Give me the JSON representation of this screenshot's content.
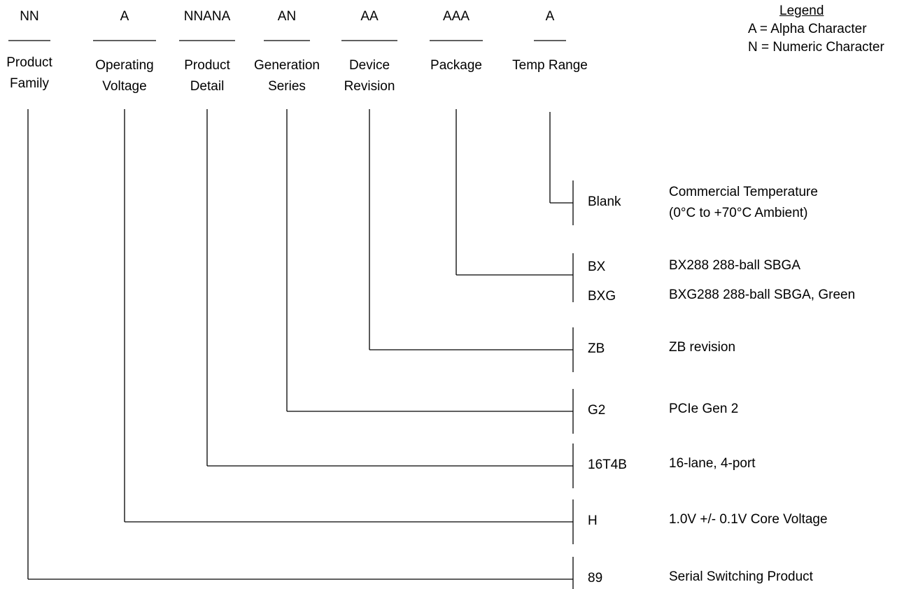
{
  "legend": {
    "title": "Legend",
    "entries": [
      "A = Alpha Character",
      "N = Numeric Character"
    ]
  },
  "fields": [
    {
      "format": "NN",
      "name_lines": [
        "Product",
        "Family"
      ]
    },
    {
      "format": "A",
      "name_lines": [
        "Operating",
        "Voltage"
      ]
    },
    {
      "format": "NNANA",
      "name_lines": [
        "Product",
        "Detail"
      ]
    },
    {
      "format": "AN",
      "name_lines": [
        "Generation",
        "Series"
      ]
    },
    {
      "format": "AA",
      "name_lines": [
        "Device",
        "Revision"
      ]
    },
    {
      "format": "AAA",
      "name_lines": [
        "Package"
      ]
    },
    {
      "format": "A",
      "name_lines": [
        "Temp Range"
      ]
    }
  ],
  "codes": [
    {
      "field": 6,
      "options": [
        {
          "code": "Blank",
          "description_lines": [
            "Commercial Temperature",
            "(0°C to +70°C Ambient)"
          ]
        }
      ]
    },
    {
      "field": 5,
      "options": [
        {
          "code": "BX",
          "description_lines": [
            "BX288 288-ball SBGA"
          ]
        },
        {
          "code": "BXG",
          "description_lines": [
            "BXG288 288-ball SBGA, Green"
          ]
        }
      ]
    },
    {
      "field": 4,
      "options": [
        {
          "code": "ZB",
          "description_lines": [
            "ZB revision"
          ]
        }
      ]
    },
    {
      "field": 3,
      "options": [
        {
          "code": "G2",
          "description_lines": [
            "PCIe Gen 2"
          ]
        }
      ]
    },
    {
      "field": 2,
      "options": [
        {
          "code": "16T4B",
          "description_lines": [
            "16-lane, 4-port"
          ]
        }
      ]
    },
    {
      "field": 1,
      "options": [
        {
          "code": "H",
          "description_lines": [
            "1.0V +/- 0.1V Core Voltage"
          ]
        }
      ]
    },
    {
      "field": 0,
      "options": [
        {
          "code": "89",
          "description_lines": [
            "Serial Switching Product"
          ]
        }
      ]
    }
  ]
}
